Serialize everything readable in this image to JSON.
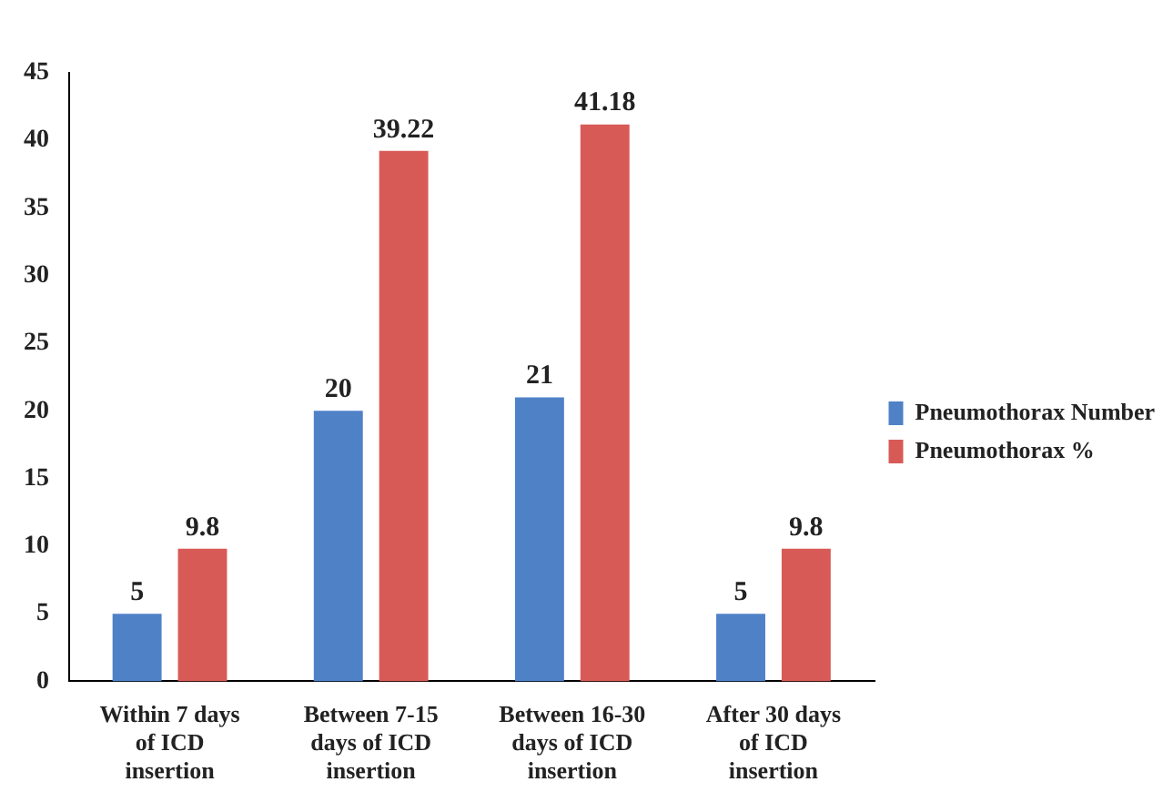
{
  "chart_data": {
    "type": "bar",
    "categories": [
      "Within 7 days of ICD insertion",
      "Between 7-15 days of ICD insertion",
      "Between 16-30 days of ICD insertion",
      "After 30 days of ICD insertion"
    ],
    "series": [
      {
        "name": "Pneumothorax Number",
        "color": "#4f81c7",
        "values": [
          5,
          20,
          21,
          5
        ]
      },
      {
        "name": "Pneumothorax %",
        "color": "#d85a57",
        "values": [
          9.8,
          39.22,
          41.18,
          9.8
        ]
      }
    ],
    "ylim": [
      0,
      45
    ],
    "yticks": [
      0,
      5,
      10,
      15,
      20,
      25,
      30,
      35,
      40,
      45
    ],
    "grid": false,
    "legend": "right",
    "data_labels": true
  }
}
